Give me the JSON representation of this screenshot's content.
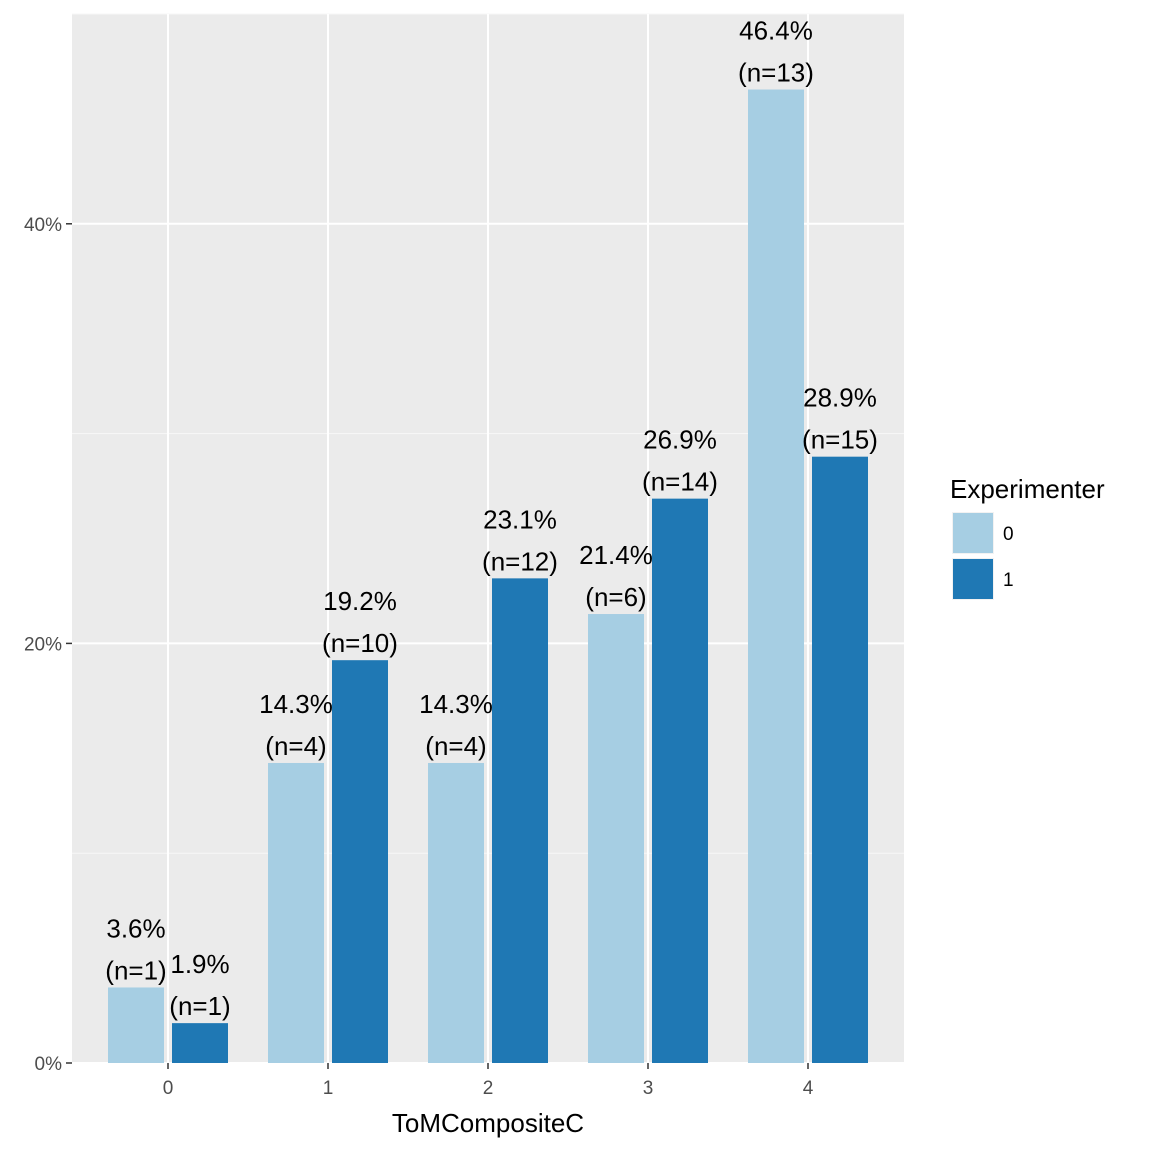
{
  "chart_data": {
    "type": "bar",
    "xlabel": "ToMCompositeC",
    "ylabel": "",
    "categories": [
      "0",
      "1",
      "2",
      "3",
      "4"
    ],
    "ylim": [
      0,
      0.5
    ],
    "yticks": [
      {
        "value": 0,
        "label": "0%"
      },
      {
        "value": 0.2,
        "label": "20%"
      },
      {
        "value": 0.4,
        "label": "40%"
      }
    ],
    "grid": true,
    "legend": {
      "title": "Experimenter",
      "position": "right"
    },
    "series": [
      {
        "name": "0",
        "color": "#a6cee3",
        "values": [
          0.036,
          0.143,
          0.143,
          0.214,
          0.464
        ],
        "labels": [
          [
            "3.6%",
            "(n=1)"
          ],
          [
            "14.3%",
            "(n=4)"
          ],
          [
            "14.3%",
            "(n=4)"
          ],
          [
            "21.4%",
            "(n=6)"
          ],
          [
            "46.4%",
            "(n=13)"
          ]
        ]
      },
      {
        "name": "1",
        "color": "#1f78b4",
        "values": [
          0.019,
          0.192,
          0.231,
          0.269,
          0.289
        ],
        "labels": [
          [
            "1.9%",
            "(n=1)"
          ],
          [
            "19.2%",
            "(n=10)"
          ],
          [
            "23.1%",
            "(n=12)"
          ],
          [
            "26.9%",
            "(n=14)"
          ],
          [
            "28.9%",
            "(n=15)"
          ]
        ]
      }
    ]
  }
}
